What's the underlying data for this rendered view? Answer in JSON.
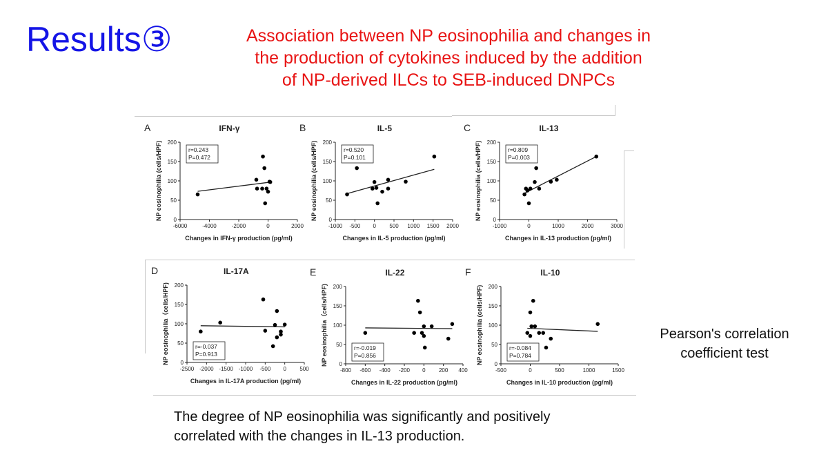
{
  "slide": {
    "title": "Results③",
    "subtitle_lines": [
      "Association between NP eosinophilia and changes in",
      "the production of cytokines induced by the addition",
      "of NP-derived ILCs to SEB-induced DNPCs"
    ],
    "method_note_lines": [
      "Pearson's correlation",
      "coefficient test"
    ],
    "conclusion_lines": [
      "The degree of NP eosinophilia was significantly and positively",
      "correlated with the changes in IL-13 production."
    ]
  },
  "chart_data": [
    {
      "type": "scatter",
      "letter": "A",
      "title": "IFN-γ",
      "xlabel": "Changes in IFN-γ production (pg/ml)",
      "ylabel": "NP eosinophilia (cells/HPF)",
      "xlim": [
        -6000,
        2000
      ],
      "xticks": [
        -6000,
        -4000,
        -2000,
        0,
        2000
      ],
      "ylim": [
        0,
        200
      ],
      "yticks": [
        0,
        50,
        100,
        150,
        200
      ],
      "stats": [
        "r=0.243",
        "P=0.472"
      ],
      "stats_position": "top-left",
      "points": [
        [
          -4800,
          65
        ],
        [
          -800,
          103
        ],
        [
          -750,
          80
        ],
        [
          -400,
          80
        ],
        [
          -350,
          163
        ],
        [
          -250,
          133
        ],
        [
          -200,
          42
        ],
        [
          -100,
          80
        ],
        [
          0,
          72
        ],
        [
          100,
          98
        ],
        [
          150,
          97
        ]
      ],
      "fit": [
        [
          -4800,
          73
        ],
        [
          200,
          97
        ]
      ]
    },
    {
      "type": "scatter",
      "letter": "B",
      "title": "IL-5",
      "xlabel": "Changes in IL-5 production (pg/ml)",
      "ylabel": "NP eosinophilia (cells/HPF)",
      "xlim": [
        -1000,
        2000
      ],
      "xticks": [
        -1000,
        -500,
        0,
        500,
        1000,
        1500,
        2000
      ],
      "ylim": [
        0,
        200
      ],
      "yticks": [
        0,
        50,
        100,
        150,
        200
      ],
      "stats": [
        "r=0.520",
        "P=0.101"
      ],
      "stats_position": "top-left",
      "points": [
        [
          -700,
          65
        ],
        [
          -450,
          133
        ],
        [
          -50,
          80
        ],
        [
          0,
          97
        ],
        [
          50,
          82
        ],
        [
          80,
          42
        ],
        [
          200,
          72
        ],
        [
          350,
          80
        ],
        [
          350,
          103
        ],
        [
          800,
          98
        ],
        [
          1530,
          163
        ]
      ],
      "fit": [
        [
          -700,
          67
        ],
        [
          1530,
          130
        ]
      ]
    },
    {
      "type": "scatter",
      "letter": "C",
      "title": "IL-13",
      "xlabel": "Changes in IL-13 production (pg/ml)",
      "ylabel": "NP eosinophilia (cells/HPF)",
      "xlim": [
        -1000,
        3000
      ],
      "xticks": [
        -1000,
        0,
        1000,
        2000,
        3000
      ],
      "ylim": [
        0,
        200
      ],
      "yticks": [
        0,
        50,
        100,
        150,
        200
      ],
      "stats": [
        "r=0.809",
        "P=0.003"
      ],
      "stats_position": "top-left",
      "points": [
        [
          -150,
          65
        ],
        [
          -100,
          80
        ],
        [
          -50,
          75
        ],
        [
          0,
          42
        ],
        [
          50,
          80
        ],
        [
          200,
          97
        ],
        [
          250,
          133
        ],
        [
          350,
          80
        ],
        [
          750,
          98
        ],
        [
          950,
          103
        ],
        [
          2300,
          163
        ]
      ],
      "fit": [
        [
          -150,
          68
        ],
        [
          2300,
          163
        ]
      ]
    },
    {
      "type": "scatter",
      "letter": "D",
      "title": "IL-17A",
      "xlabel": "Changes in IL-17A production (pg/ml)",
      "ylabel": "NP eosinophilia（cells/HPF)",
      "xlim": [
        -2500,
        500
      ],
      "xticks": [
        -2500,
        -2000,
        -1500,
        -1000,
        -500,
        0,
        500
      ],
      "ylim": [
        0,
        200
      ],
      "yticks": [
        0,
        50,
        100,
        150,
        200
      ],
      "stats": [
        "r=-0.037",
        "P=0.913"
      ],
      "stats_position": "bottom-left",
      "points": [
        [
          -2150,
          80
        ],
        [
          -1650,
          103
        ],
        [
          -550,
          163
        ],
        [
          -500,
          82
        ],
        [
          -300,
          42
        ],
        [
          -250,
          97
        ],
        [
          -200,
          133
        ],
        [
          -200,
          65
        ],
        [
          -100,
          80
        ],
        [
          -100,
          72
        ],
        [
          0,
          98
        ]
      ],
      "fit": [
        [
          -2150,
          95
        ],
        [
          0,
          92
        ]
      ]
    },
    {
      "type": "scatter",
      "letter": "E",
      "title": "IL-22",
      "xlabel": "Changes in IL-22 production (pg/ml)",
      "ylabel": "NP eosinophilia（cells/HPF)",
      "xlim": [
        -800,
        400
      ],
      "xticks": [
        -800,
        -600,
        -400,
        -200,
        0,
        200,
        400
      ],
      "ylim": [
        0,
        200
      ],
      "yticks": [
        0,
        50,
        100,
        150,
        200
      ],
      "stats": [
        "r=-0.019",
        "P=0.856"
      ],
      "stats_position": "bottom-left",
      "points": [
        [
          -600,
          80
        ],
        [
          -100,
          80
        ],
        [
          -60,
          163
        ],
        [
          -40,
          133
        ],
        [
          -20,
          80
        ],
        [
          0,
          72
        ],
        [
          0,
          97
        ],
        [
          10,
          42
        ],
        [
          80,
          97
        ],
        [
          250,
          65
        ],
        [
          290,
          103
        ]
      ],
      "fit": [
        [
          -600,
          93
        ],
        [
          290,
          91
        ]
      ]
    },
    {
      "type": "scatter",
      "letter": "F",
      "title": "IL-10",
      "xlabel": "Changes in IL-10 production (pg/ml)",
      "ylabel": "NP eosinophilia (cells/HPF)",
      "xlim": [
        -500,
        1500
      ],
      "xticks": [
        -500,
        0,
        500,
        1000,
        1500
      ],
      "ylim": [
        0,
        200
      ],
      "yticks": [
        0,
        50,
        100,
        150,
        200
      ],
      "stats": [
        "r=-0.084",
        "P=0.784"
      ],
      "stats_position": "bottom-left",
      "points": [
        [
          -50,
          80
        ],
        [
          0,
          133
        ],
        [
          0,
          72
        ],
        [
          20,
          97
        ],
        [
          50,
          163
        ],
        [
          80,
          97
        ],
        [
          150,
          80
        ],
        [
          220,
          80
        ],
        [
          270,
          42
        ],
        [
          350,
          65
        ],
        [
          1150,
          103
        ]
      ],
      "fit": [
        [
          -50,
          92
        ],
        [
          1150,
          84
        ]
      ]
    }
  ]
}
